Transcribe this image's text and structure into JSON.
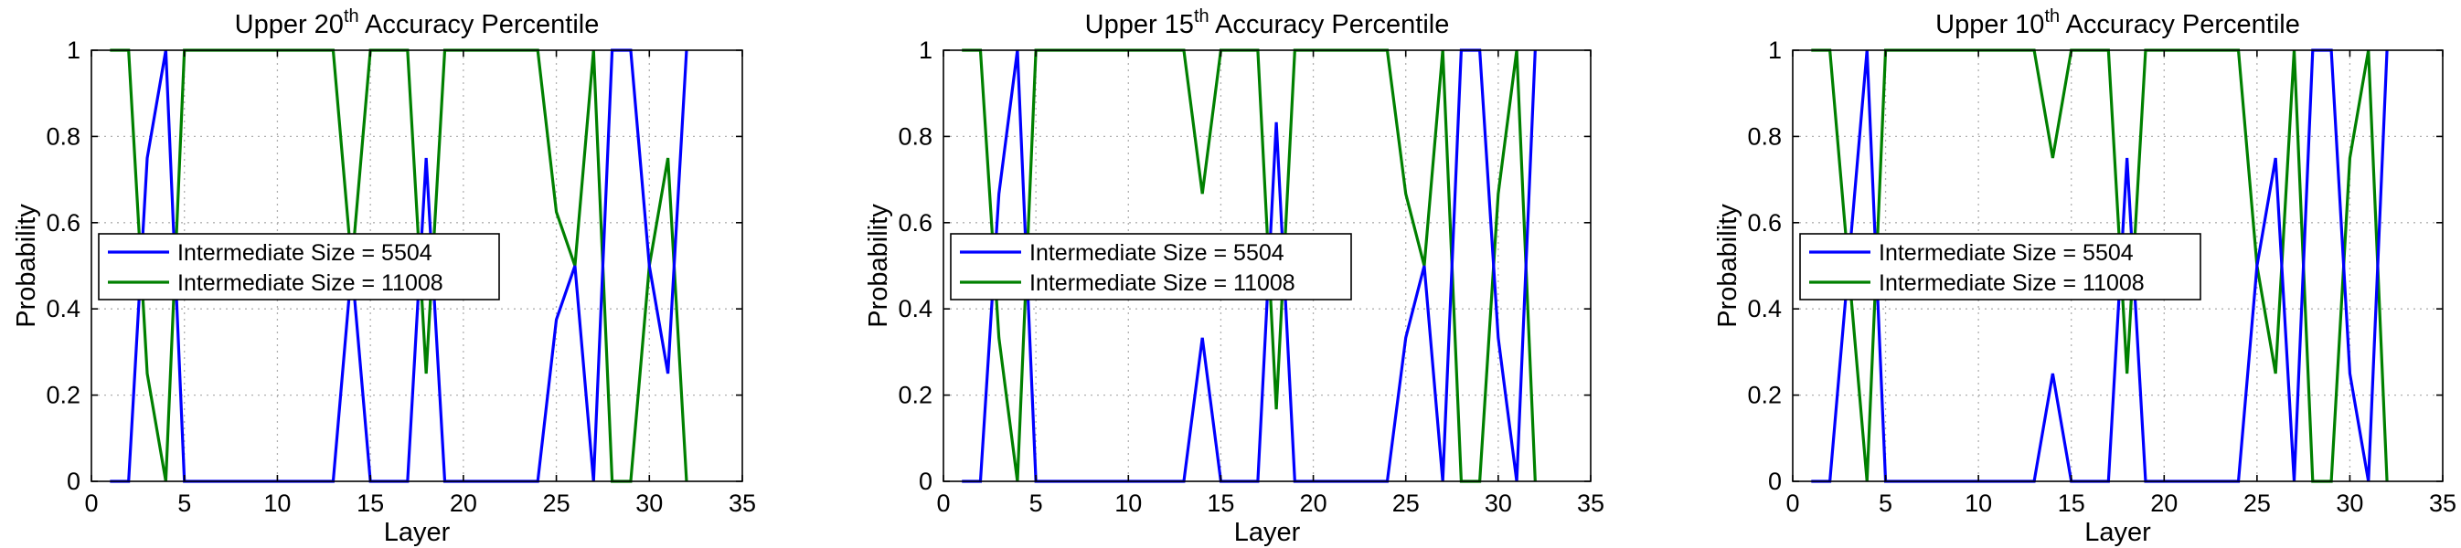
{
  "chart_data": [
    {
      "type": "line",
      "title": "Upper 20th Accuracy Percentile",
      "title_parts": [
        "Upper 20",
        "th",
        " Accuracy Percentile"
      ],
      "xlabel": "Layer",
      "ylabel": "Probability",
      "xlim": [
        0,
        35
      ],
      "ylim": [
        0,
        1
      ],
      "xticks": [
        0,
        5,
        10,
        15,
        20,
        25,
        30,
        35
      ],
      "yticks": [
        0,
        0.2,
        0.4,
        0.6,
        0.8,
        1
      ],
      "grid": true,
      "legend_position": "center-left",
      "series": [
        {
          "name": "Intermediate Size = 5504",
          "color": "#0000ff",
          "x": [
            1,
            2,
            3,
            4,
            5,
            6,
            7,
            8,
            9,
            10,
            11,
            12,
            13,
            14,
            15,
            16,
            17,
            18,
            19,
            20,
            21,
            22,
            23,
            24,
            25,
            26,
            27,
            28,
            29,
            30,
            31,
            32
          ],
          "y": [
            0,
            0,
            0.75,
            1,
            0,
            0,
            0,
            0,
            0,
            0,
            0,
            0,
            0,
            0.5,
            0,
            0,
            0,
            0.75,
            0,
            0,
            0,
            0,
            0,
            0,
            0.375,
            0.5,
            0,
            1,
            1,
            0.5,
            0.25,
            1
          ]
        },
        {
          "name": "Intermediate Size = 11008",
          "color": "#008000",
          "x": [
            1,
            2,
            3,
            4,
            5,
            6,
            7,
            8,
            9,
            10,
            11,
            12,
            13,
            14,
            15,
            16,
            17,
            18,
            19,
            20,
            21,
            22,
            23,
            24,
            25,
            26,
            27,
            28,
            29,
            30,
            31,
            32
          ],
          "y": [
            1,
            1,
            0.25,
            0,
            1,
            1,
            1,
            1,
            1,
            1,
            1,
            1,
            1,
            0.5,
            1,
            1,
            1,
            0.25,
            1,
            1,
            1,
            1,
            1,
            1,
            0.625,
            0.5,
            1,
            0,
            0,
            0.5,
            0.75,
            0
          ]
        }
      ]
    },
    {
      "type": "line",
      "title": "Upper 15th Accuracy Percentile",
      "title_parts": [
        "Upper 15",
        "th",
        " Accuracy Percentile"
      ],
      "xlabel": "Layer",
      "ylabel": "Probability",
      "xlim": [
        0,
        35
      ],
      "ylim": [
        0,
        1
      ],
      "xticks": [
        0,
        5,
        10,
        15,
        20,
        25,
        30,
        35
      ],
      "yticks": [
        0,
        0.2,
        0.4,
        0.6,
        0.8,
        1
      ],
      "grid": true,
      "legend_position": "center-left",
      "series": [
        {
          "name": "Intermediate Size = 5504",
          "color": "#0000ff",
          "x": [
            1,
            2,
            3,
            4,
            5,
            6,
            7,
            8,
            9,
            10,
            11,
            12,
            13,
            14,
            15,
            16,
            17,
            18,
            19,
            20,
            21,
            22,
            23,
            24,
            25,
            26,
            27,
            28,
            29,
            30,
            31,
            32
          ],
          "y": [
            0,
            0,
            0.667,
            1,
            0,
            0,
            0,
            0,
            0,
            0,
            0,
            0,
            0,
            0.333,
            0,
            0,
            0,
            0.833,
            0,
            0,
            0,
            0,
            0,
            0,
            0.333,
            0.5,
            0,
            1,
            1,
            0.333,
            0,
            1
          ]
        },
        {
          "name": "Intermediate Size = 11008",
          "color": "#008000",
          "x": [
            1,
            2,
            3,
            4,
            5,
            6,
            7,
            8,
            9,
            10,
            11,
            12,
            13,
            14,
            15,
            16,
            17,
            18,
            19,
            20,
            21,
            22,
            23,
            24,
            25,
            26,
            27,
            28,
            29,
            30,
            31,
            32
          ],
          "y": [
            1,
            1,
            0.333,
            0,
            1,
            1,
            1,
            1,
            1,
            1,
            1,
            1,
            1,
            0.667,
            1,
            1,
            1,
            0.167,
            1,
            1,
            1,
            1,
            1,
            1,
            0.667,
            0.5,
            1,
            0,
            0,
            0.667,
            1,
            0
          ]
        }
      ]
    },
    {
      "type": "line",
      "title": "Upper 10th Accuracy Percentile",
      "title_parts": [
        "Upper 10",
        "th",
        " Accuracy Percentile"
      ],
      "xlabel": "Layer",
      "ylabel": "Probability",
      "xlim": [
        0,
        35
      ],
      "ylim": [
        0,
        1
      ],
      "xticks": [
        0,
        5,
        10,
        15,
        20,
        25,
        30,
        35
      ],
      "yticks": [
        0,
        0.2,
        0.4,
        0.6,
        0.8,
        1
      ],
      "grid": true,
      "legend_position": "center-left",
      "series": [
        {
          "name": "Intermediate Size = 5504",
          "color": "#0000ff",
          "x": [
            1,
            2,
            3,
            4,
            5,
            6,
            7,
            8,
            9,
            10,
            11,
            12,
            13,
            14,
            15,
            16,
            17,
            18,
            19,
            20,
            21,
            22,
            23,
            24,
            25,
            26,
            27,
            28,
            29,
            30,
            31,
            32
          ],
          "y": [
            0,
            0,
            0.5,
            1,
            0,
            0,
            0,
            0,
            0,
            0,
            0,
            0,
            0,
            0.25,
            0,
            0,
            0,
            0.75,
            0,
            0,
            0,
            0,
            0,
            0,
            0.5,
            0.75,
            0,
            1,
            1,
            0.25,
            0,
            1
          ]
        },
        {
          "name": "Intermediate Size = 11008",
          "color": "#008000",
          "x": [
            1,
            2,
            3,
            4,
            5,
            6,
            7,
            8,
            9,
            10,
            11,
            12,
            13,
            14,
            15,
            16,
            17,
            18,
            19,
            20,
            21,
            22,
            23,
            24,
            25,
            26,
            27,
            28,
            29,
            30,
            31,
            32
          ],
          "y": [
            1,
            1,
            0.5,
            0,
            1,
            1,
            1,
            1,
            1,
            1,
            1,
            1,
            1,
            0.75,
            1,
            1,
            1,
            0.25,
            1,
            1,
            1,
            1,
            1,
            1,
            0.5,
            0.25,
            1,
            0,
            0,
            0.75,
            1,
            0
          ]
        }
      ]
    }
  ]
}
